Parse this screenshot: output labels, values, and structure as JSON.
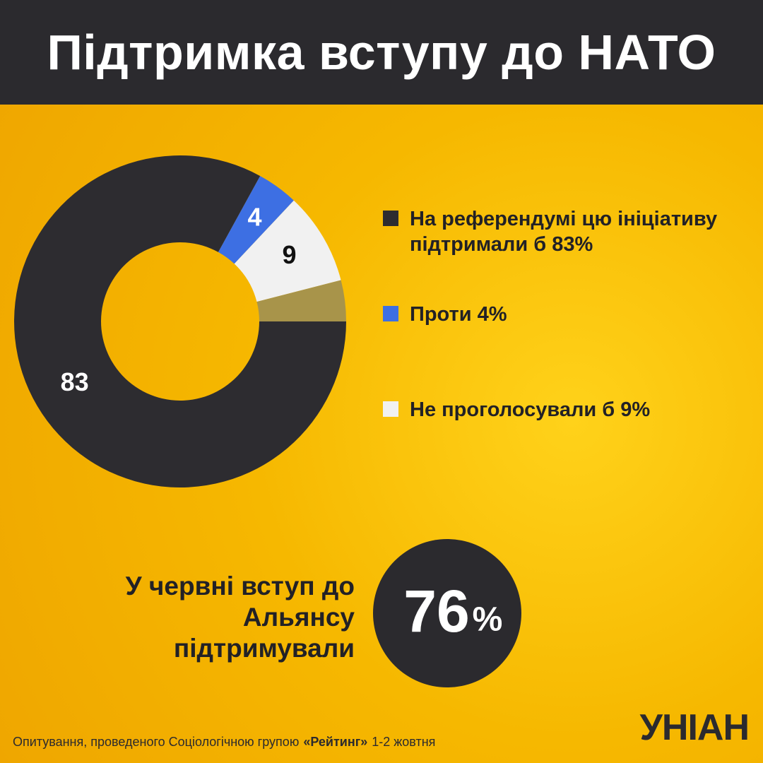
{
  "title": "Підтримка вступу до НАТО",
  "chart_data": {
    "type": "donut",
    "categories": [
      "На референдумі цю ініціативу підтримали б 83%",
      "Проти 4%",
      "Не проголосували б 9%",
      null
    ],
    "values": [
      83,
      4,
      9,
      4
    ],
    "colors": [
      "#2d2c30",
      "#3d6fe3",
      "#f1f1f1",
      "#a8944a"
    ],
    "label_colors": [
      "#ffffff",
      "#ffffff",
      "#111111",
      "#111111"
    ]
  },
  "callout": {
    "text": "У червні вступ до Альянсу підтримували",
    "value": "76",
    "unit": "%"
  },
  "footer": {
    "parts": [
      "Опитування, проведеного Соціологічною групою",
      "«Рейтинг»",
      "1-2 жовтня"
    ]
  },
  "logo": "УНІАН"
}
